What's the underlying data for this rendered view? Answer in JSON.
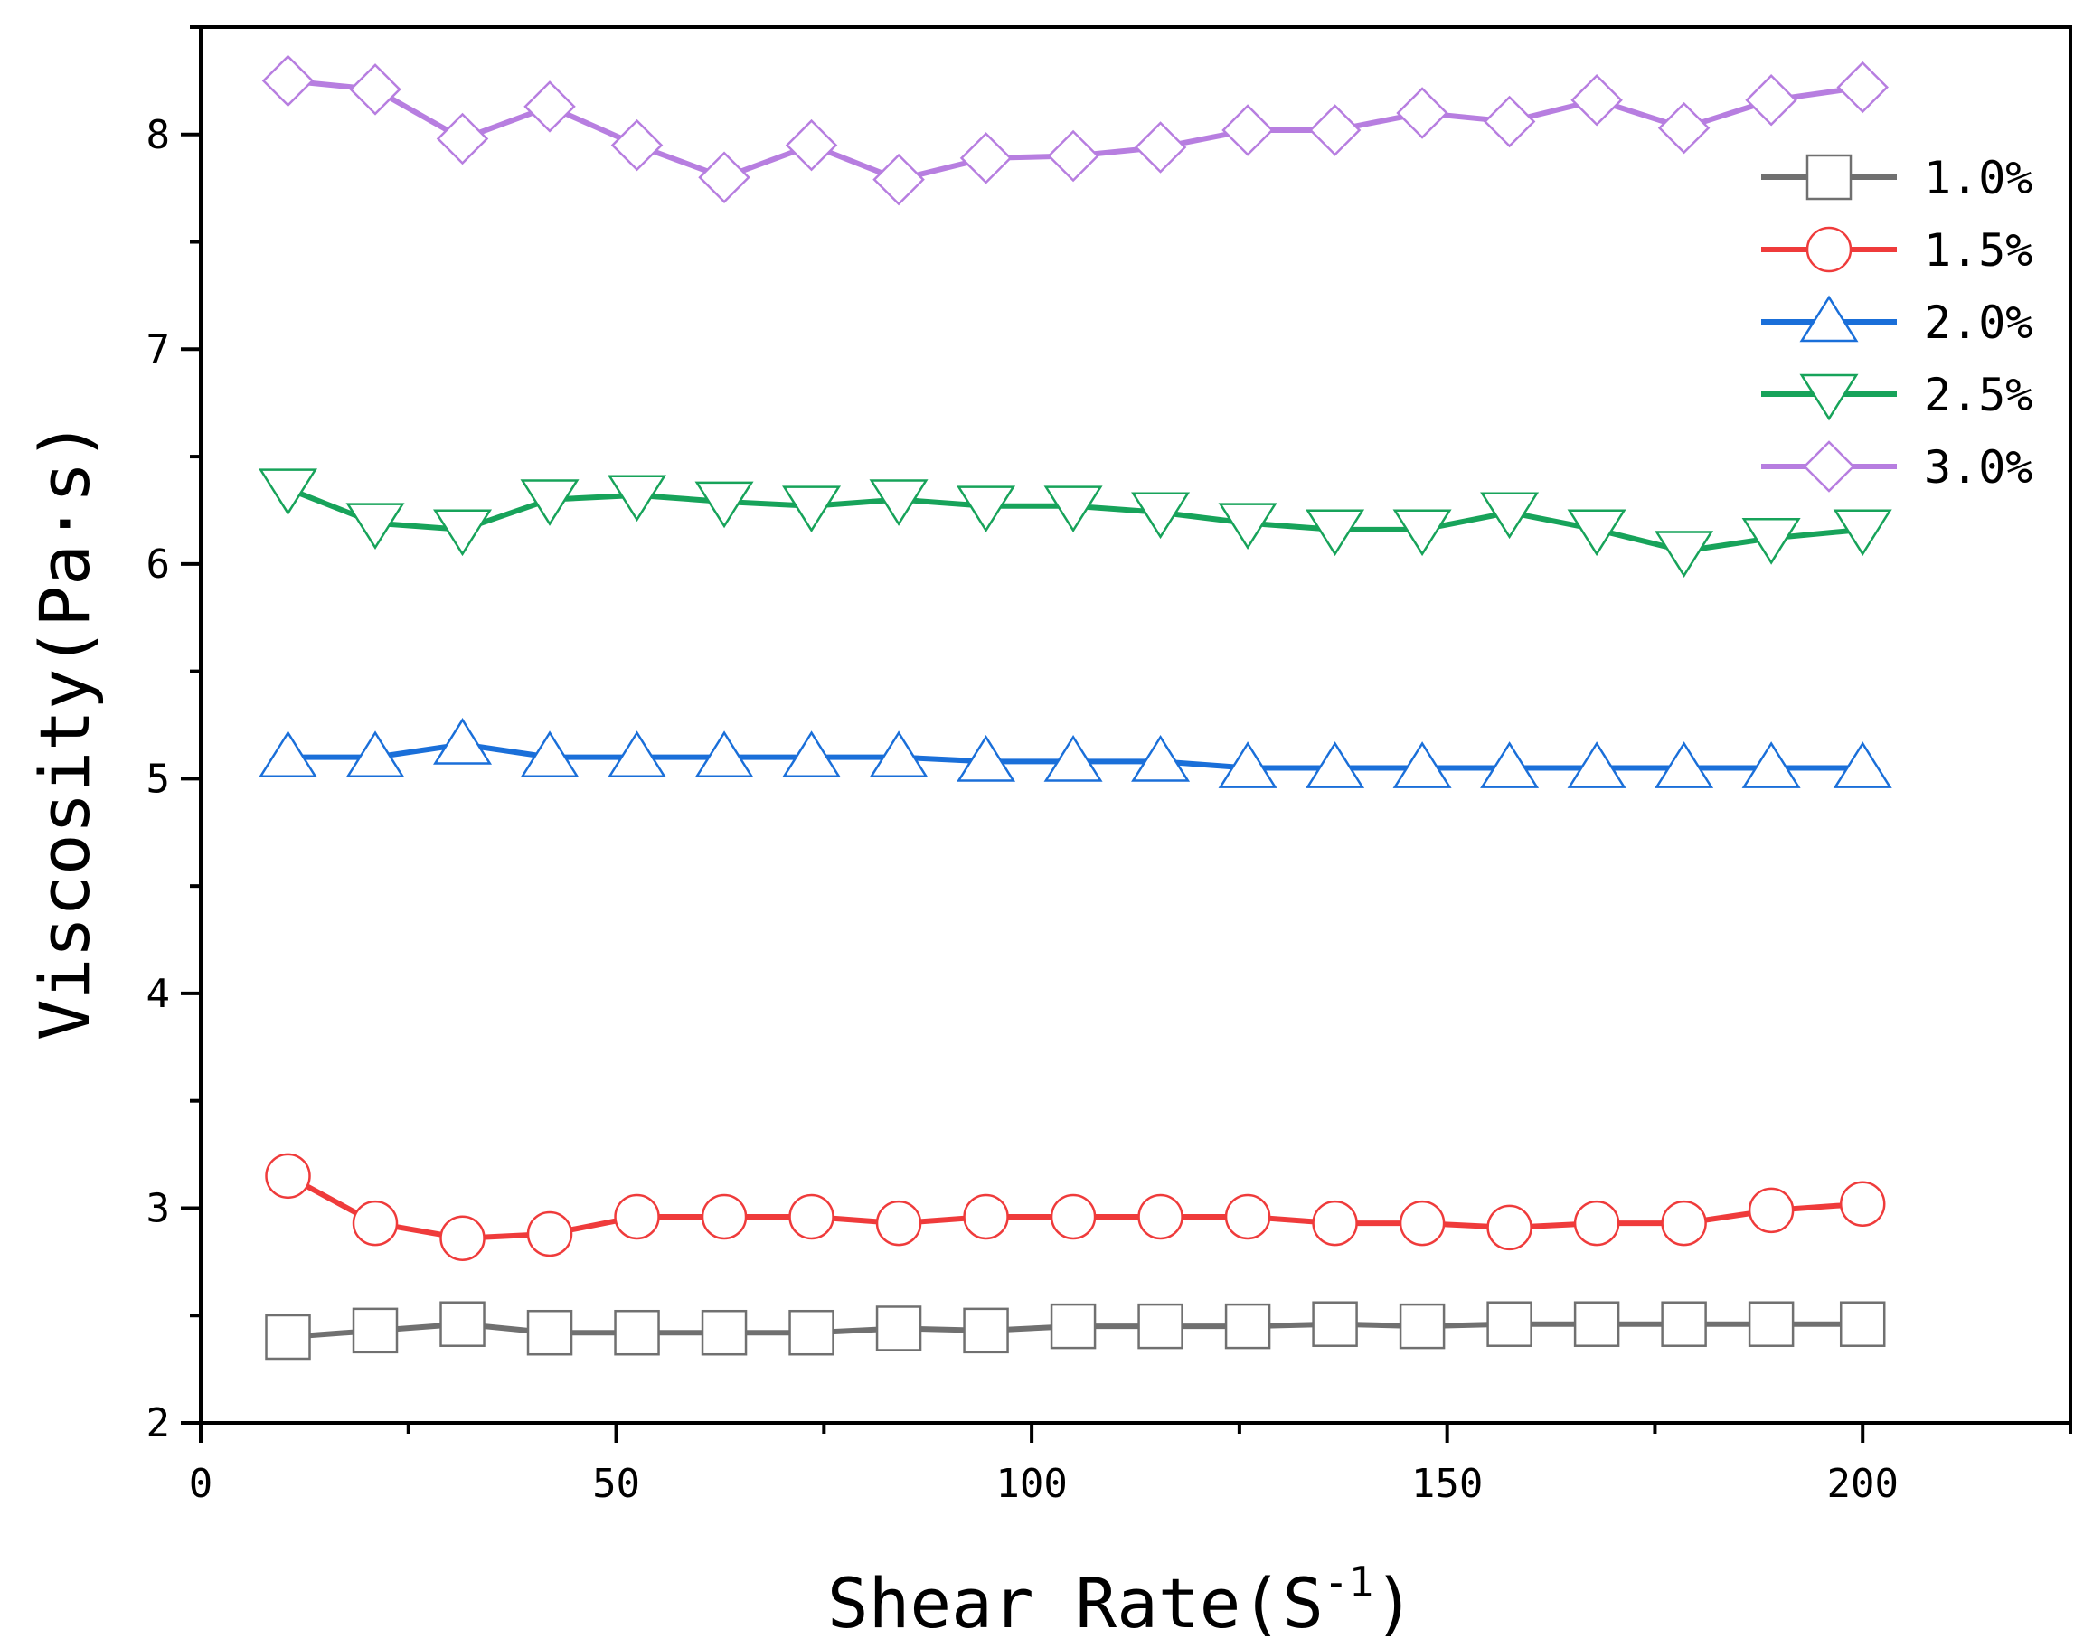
{
  "chart_data": {
    "type": "line",
    "title": "",
    "xlabel": "Shear Rate(S",
    "xlabel_sup": "-1",
    "xlabel_close": ")",
    "ylabel": "Viscosity(Pa·s)",
    "xlim": [
      0,
      225
    ],
    "ylim": [
      2,
      8.5
    ],
    "xticks": [
      0,
      50,
      100,
      150,
      200
    ],
    "yticks": [
      2,
      3,
      4,
      5,
      6,
      7,
      8
    ],
    "legend_position": "top-right",
    "x": [
      10.5,
      21,
      31.5,
      42,
      52.5,
      63,
      73.5,
      84,
      94.5,
      105,
      115.5,
      126,
      136.5,
      147,
      157.5,
      168,
      178.5,
      189,
      200
    ],
    "series": [
      {
        "name": "1.0%",
        "color": "#707070",
        "marker": "square",
        "values": [
          2.4,
          2.43,
          2.46,
          2.42,
          2.42,
          2.42,
          2.42,
          2.44,
          2.43,
          2.45,
          2.45,
          2.45,
          2.46,
          2.45,
          2.46,
          2.46,
          2.46,
          2.46,
          2.46
        ]
      },
      {
        "name": "1.5%",
        "color": "#ef3b3b",
        "marker": "circle",
        "values": [
          3.15,
          2.93,
          2.86,
          2.88,
          2.96,
          2.96,
          2.96,
          2.93,
          2.96,
          2.96,
          2.96,
          2.96,
          2.93,
          2.93,
          2.91,
          2.93,
          2.93,
          2.99,
          3.02
        ]
      },
      {
        "name": "2.0%",
        "color": "#1a6fd9",
        "marker": "triangle-up",
        "values": [
          5.1,
          5.1,
          5.16,
          5.1,
          5.1,
          5.1,
          5.1,
          5.1,
          5.08,
          5.08,
          5.08,
          5.05,
          5.05,
          5.05,
          5.05,
          5.05,
          5.05,
          5.05,
          5.05
        ]
      },
      {
        "name": "2.5%",
        "color": "#17a35a",
        "marker": "triangle-down",
        "values": [
          6.35,
          6.19,
          6.16,
          6.3,
          6.32,
          6.29,
          6.27,
          6.3,
          6.27,
          6.27,
          6.24,
          6.19,
          6.16,
          6.16,
          6.24,
          6.16,
          6.06,
          6.12,
          6.16
        ]
      },
      {
        "name": "3.0%",
        "color": "#b77ee0",
        "marker": "diamond",
        "values": [
          8.25,
          8.21,
          7.98,
          8.13,
          7.95,
          7.8,
          7.95,
          7.79,
          7.89,
          7.9,
          7.94,
          8.02,
          8.02,
          8.1,
          8.06,
          8.16,
          8.03,
          8.16,
          8.22
        ]
      }
    ]
  }
}
